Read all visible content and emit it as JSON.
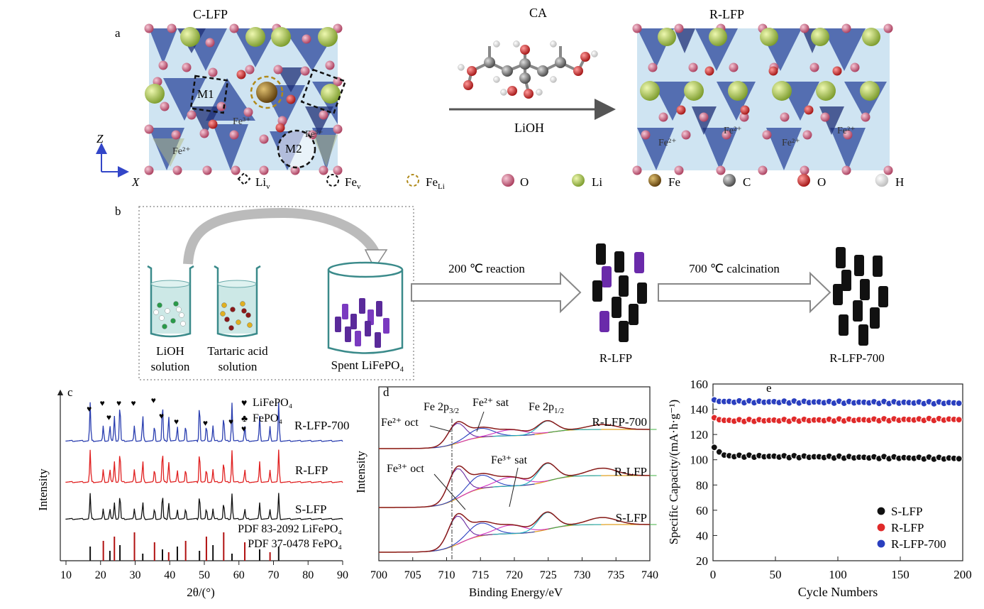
{
  "panel_a": {
    "letter": "a",
    "left_title": "C-LFP",
    "right_title": "R-LFP",
    "reagent_top": "CA",
    "reagent_bottom": "LiOH",
    "site_m1": "M1",
    "site_m2": "M2",
    "fe_labels_left": [
      "Fe²⁺",
      "Fe³⁺",
      "Fe³⁺"
    ],
    "fe_labels_right": [
      "Fe²⁺",
      "Fe²⁺",
      "Fe²⁺",
      "Fe²⁺"
    ],
    "axis_z": "Z",
    "axis_x": "X",
    "legend": [
      {
        "label": "Li",
        "sub": "v",
        "kind": "dashed-black-diamond"
      },
      {
        "label": "Fe",
        "sub": "v",
        "kind": "dashed-black-circle"
      },
      {
        "label": "Fe",
        "sub": "Li",
        "kind": "dashed-gold-circle"
      },
      {
        "label": "O",
        "sub": "",
        "kind": "sphere",
        "color": "#c85a78"
      },
      {
        "label": "Li",
        "sub": "",
        "kind": "sphere",
        "color": "#a8c85a"
      },
      {
        "label": "Fe",
        "sub": "",
        "kind": "sphere",
        "color": "#8a6a28"
      },
      {
        "label": "C",
        "sub": "",
        "kind": "sphere",
        "color": "#777777"
      },
      {
        "label": "O",
        "sub": "",
        "kind": "sphere",
        "color": "#cc2a2a"
      },
      {
        "label": "H",
        "sub": "",
        "kind": "sphere",
        "color": "#eeeeee"
      }
    ]
  },
  "panel_b": {
    "letter": "b",
    "beaker1": [
      "LiOH",
      "solution"
    ],
    "beaker2": [
      "Tartaric acid",
      "solution"
    ],
    "beaker3": "Spent LiFePO₄",
    "step1": "200 ℃  reaction",
    "step2": "700 ℃  calcination",
    "product1": "R-LFP",
    "product2": "R-LFP-700"
  },
  "panel_c": {
    "letter": "c",
    "legend1": "LiFePO₄",
    "legend2": "FePO₄",
    "curve_labels": [
      "R-LFP-700",
      "R-LFP",
      "S-LFP"
    ],
    "pdf1": "PDF 83-2092 LiFePO₄",
    "pdf2": "PDF 37-0478 FePO₄",
    "ylabel": "Intensity",
    "xlabel": "2θ/(°)",
    "xticks": [
      "10",
      "20",
      "30",
      "40",
      "50",
      "60",
      "70",
      "80",
      "90"
    ],
    "colors": {
      "r700": "#2b3fb0",
      "rlfp": "#e02020",
      "slfp": "#111111",
      "ref": "#b01010"
    }
  },
  "panel_d": {
    "letter": "d",
    "annotations": [
      "Fe 2p3/2",
      "Fe²⁺ sat",
      "Fe 2p1/2",
      "Fe²⁺ oct",
      "Fe³⁺ oct",
      "Fe³⁺ sat"
    ],
    "curve_labels": [
      "R-LFP-700",
      "R-LFP",
      "S-LFP"
    ],
    "ylabel": "Intensity",
    "xlabel": "Binding Energy/eV",
    "xticks": [
      "700",
      "705",
      "710",
      "715",
      "720",
      "725",
      "730",
      "735",
      "740"
    ]
  },
  "chart_data": {
    "type": "scatter",
    "letter": "e",
    "xlabel": "Cycle Numbers",
    "ylabel": "Specific Capacity/(mA·h·g⁻¹)",
    "xlim": [
      0,
      200
    ],
    "ylim": [
      20,
      160
    ],
    "xticks": [
      0,
      50,
      100,
      150,
      200
    ],
    "yticks": [
      20,
      40,
      60,
      80,
      100,
      120,
      140,
      160
    ],
    "legend_position": "bottom-right",
    "series": [
      {
        "name": "S-LFP",
        "color": "#111111",
        "start": 110,
        "plateau": 103,
        "end": 101
      },
      {
        "name": "R-LFP",
        "color": "#e02a2a",
        "start": 133,
        "plateau": 131,
        "end": 132
      },
      {
        "name": "R-LFP-700",
        "color": "#2a3fbf",
        "start": 147,
        "plateau": 146,
        "end": 145
      }
    ]
  }
}
